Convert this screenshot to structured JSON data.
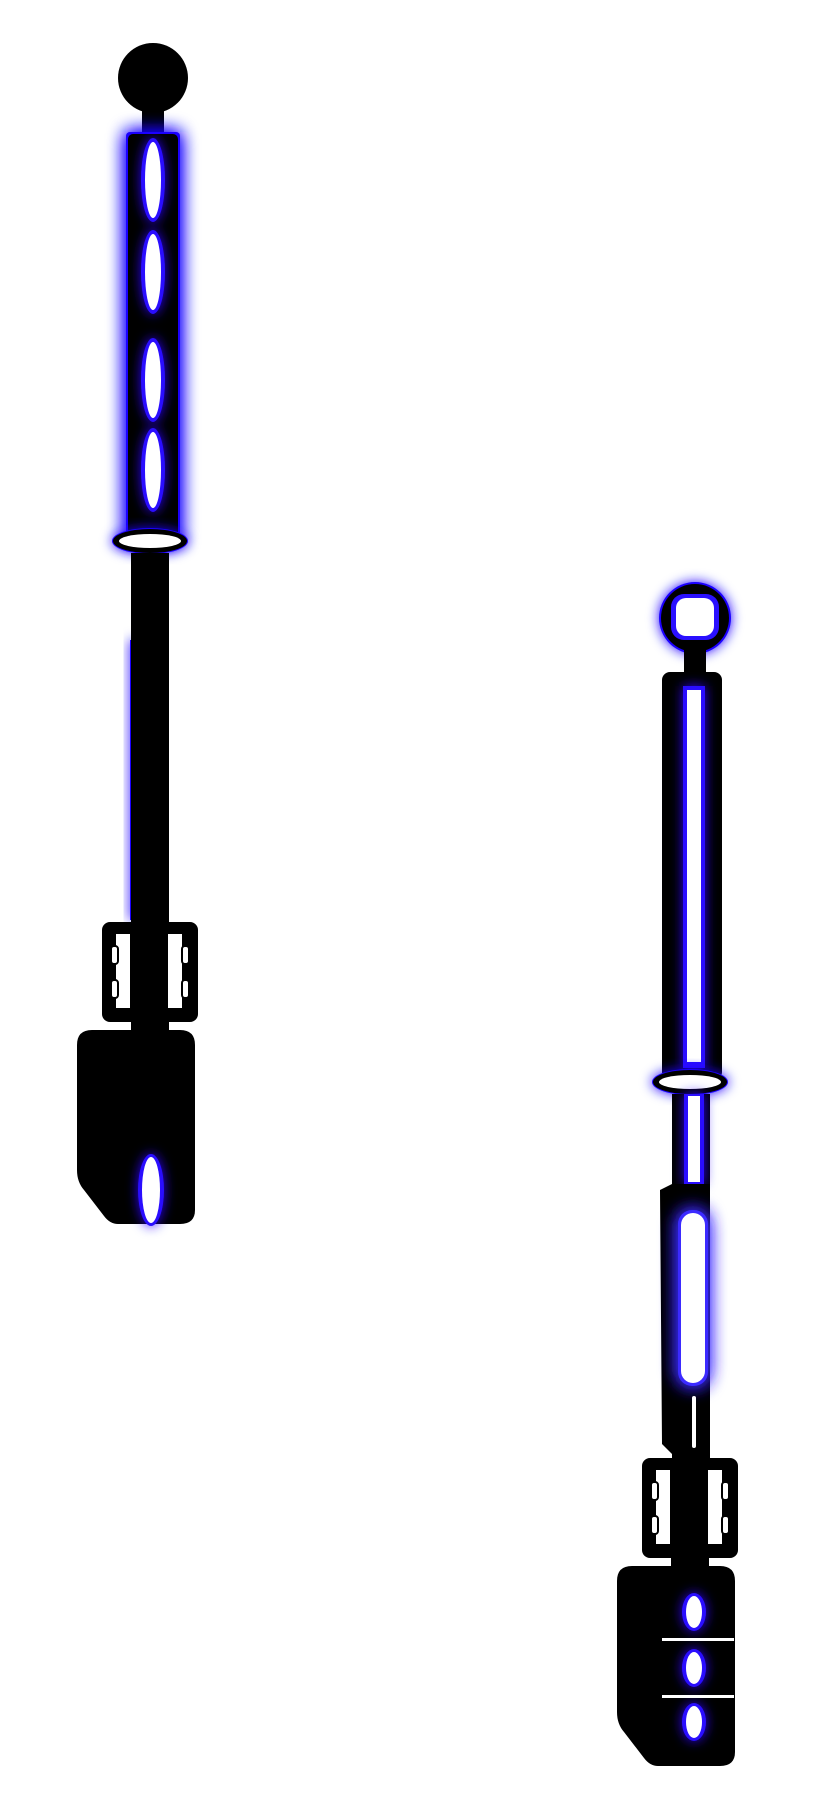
{
  "colors": {
    "background": "#ffffff",
    "body": "#000000",
    "glow": "#1a00ff",
    "glow_soft": "#3a2bff",
    "light": "#ffffff"
  },
  "items": [
    {
      "name": "device-left",
      "head": "solid-ball",
      "slots": "four-oval"
    },
    {
      "name": "device-right",
      "head": "ring-with-window",
      "slots": "long-bar"
    }
  ]
}
